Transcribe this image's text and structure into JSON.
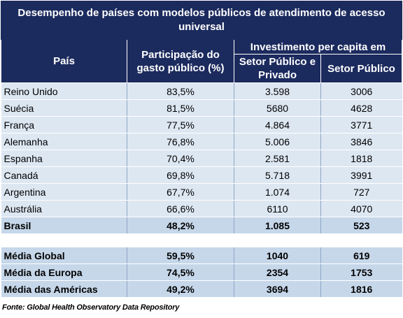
{
  "title": "Desempenho de países com modelos públicos de atendimento de acesso universal",
  "headers": {
    "country": "País",
    "share": "Participação do gasto público (%)",
    "investment_group": "Investimento per capita em",
    "public_private": "Setor Público e Privado",
    "public": "Setor Público"
  },
  "rows": [
    {
      "country": "Reino Unido",
      "share": "83,5%",
      "public_private": "3.598",
      "public": "3006"
    },
    {
      "country": "Suécia",
      "share": "81,5%",
      "public_private": "5680",
      "public": "4628"
    },
    {
      "country": "França",
      "share": "77,5%",
      "public_private": "4.864",
      "public": "3771"
    },
    {
      "country": "Alemanha",
      "share": "76,8%",
      "public_private": "5.006",
      "public": "3846"
    },
    {
      "country": "Espanha",
      "share": "70,4%",
      "public_private": "2.581",
      "public": "1818"
    },
    {
      "country": "Canadá",
      "share": "69,8%",
      "public_private": "5.718",
      "public": "3991"
    },
    {
      "country": "Argentina",
      "share": "67,7%",
      "public_private": "1.074",
      "public": "727"
    },
    {
      "country": "Austrália",
      "share": "66,6%",
      "public_private": "6110",
      "public": "4070"
    },
    {
      "country": "Brasil",
      "share": "48,2%",
      "public_private": "1.085",
      "public": "523"
    }
  ],
  "averages": [
    {
      "country": "Média Global",
      "share": "59,5%",
      "public_private": "1040",
      "public": "619"
    },
    {
      "country": "Média da Europa",
      "share": "74,5%",
      "public_private": "2354",
      "public": "1753"
    },
    {
      "country": "Média das Américas",
      "share": "49,2%",
      "public_private": "3694",
      "public": "1816"
    }
  ],
  "source": "Fonte: Global Health Observatory Data Repository"
}
